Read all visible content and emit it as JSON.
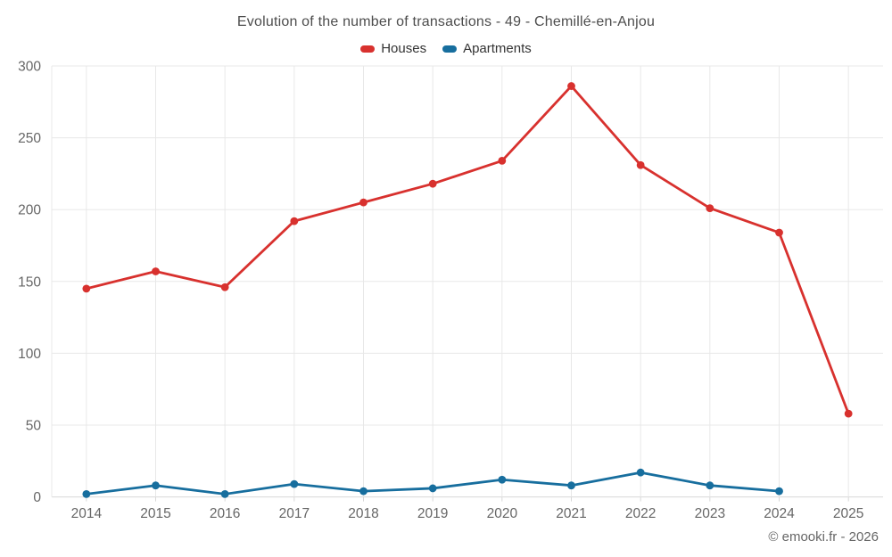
{
  "header": {
    "title": "Evolution of the number of transactions - 49 - Chemillé-en-Anjou"
  },
  "footer": {
    "credit": "© emooki.fr - 2026"
  },
  "chart_data": {
    "type": "line",
    "title": "Evolution of the number of transactions - 49 - Chemillé-en-Anjou",
    "categories": [
      "2014",
      "2015",
      "2016",
      "2017",
      "2018",
      "2019",
      "2020",
      "2021",
      "2022",
      "2023",
      "2024",
      "2025"
    ],
    "series": [
      {
        "name": "Houses",
        "color": "#d8312e",
        "values": [
          145,
          157,
          146,
          192,
          205,
          218,
          234,
          286,
          231,
          201,
          184,
          58
        ]
      },
      {
        "name": "Apartments",
        "color": "#176e9e",
        "values": [
          2,
          8,
          2,
          9,
          4,
          6,
          12,
          8,
          17,
          8,
          4,
          null
        ]
      }
    ],
    "xlabel": "",
    "ylabel": "",
    "ylim": [
      0,
      300
    ],
    "yticks": [
      0,
      50,
      100,
      150,
      200,
      250,
      300
    ],
    "grid": true,
    "legend_position": "top",
    "colors": {
      "grid_line": "#e8e8e8",
      "axis_line": "#d8d8d8",
      "tick_label": "#666666",
      "title_text": "#4d4d4d",
      "legend_text": "#333333"
    }
  }
}
